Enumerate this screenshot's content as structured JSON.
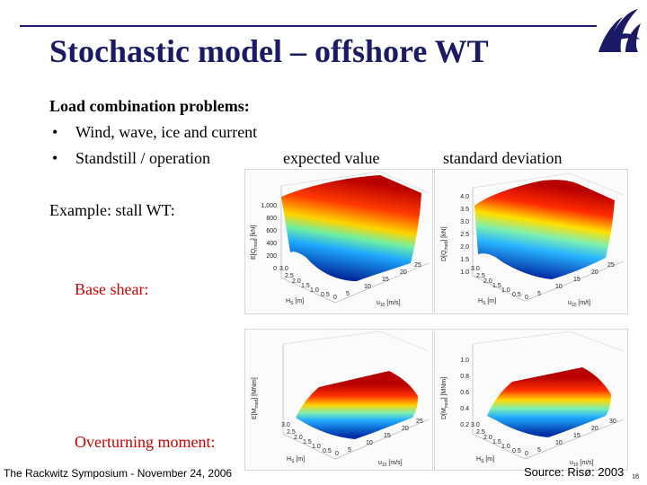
{
  "slide": {
    "title": "Stochastic model – offshore WT",
    "heading": "Load combination problems:",
    "bullets": [
      "Wind, wave, ice and current",
      "Standstill / operation"
    ],
    "bullet_char": "•",
    "example": "Example: stall WT:",
    "row_labels": [
      "Base shear:",
      "Overturning moment:"
    ],
    "label_color": "#cc0000",
    "title_color": "#1a1a66"
  },
  "plots": {
    "column_labels": [
      "expected value",
      "standard deviation"
    ],
    "hs_label": "H",
    "hs_sub": "S",
    "hs_unit": " [m]",
    "u_label": "u",
    "u_sub": "10",
    "u_unit_ms": " [m/s]",
    "u_unit_mt": " [m/t]",
    "hs_ticks": [
      "3.0",
      "2.5",
      "2.0",
      "1.5",
      "1.0",
      "0.5",
      "0"
    ],
    "u_ticks": [
      "0",
      "5",
      "10",
      "15",
      "20",
      "25",
      "30"
    ],
    "p1": {
      "zlabel": "E[Q",
      "zsub": "mod",
      "zunit": "] [kN]",
      "zticks": [
        "1,000",
        "800",
        "600",
        "400",
        "200",
        "0"
      ]
    },
    "p2": {
      "zlabel": "D[Q",
      "zsub": "mod",
      "zunit": "] [kN]",
      "zticks": [
        "4.0",
        "3.5",
        "3.0",
        "2.5",
        "2.0",
        "1.5",
        "1.0"
      ]
    },
    "p3": {
      "zlabel": "E[M",
      "zsub": "mod",
      "zunit": "] [MNm]",
      "zticks": []
    },
    "p4": {
      "zlabel": "D[M",
      "zsub": "mod",
      "zunit": "] [MNm]",
      "zticks": [
        "1.0",
        "0.8",
        "0.6",
        "0.4",
        "0.2"
      ]
    }
  },
  "footer": {
    "left": "The Rackwitz Symposium - November 24, 2006",
    "source": "Source: Risø: 2003",
    "page": "18"
  },
  "logo": {
    "name": "university-logo",
    "color": "#1a1a66"
  }
}
